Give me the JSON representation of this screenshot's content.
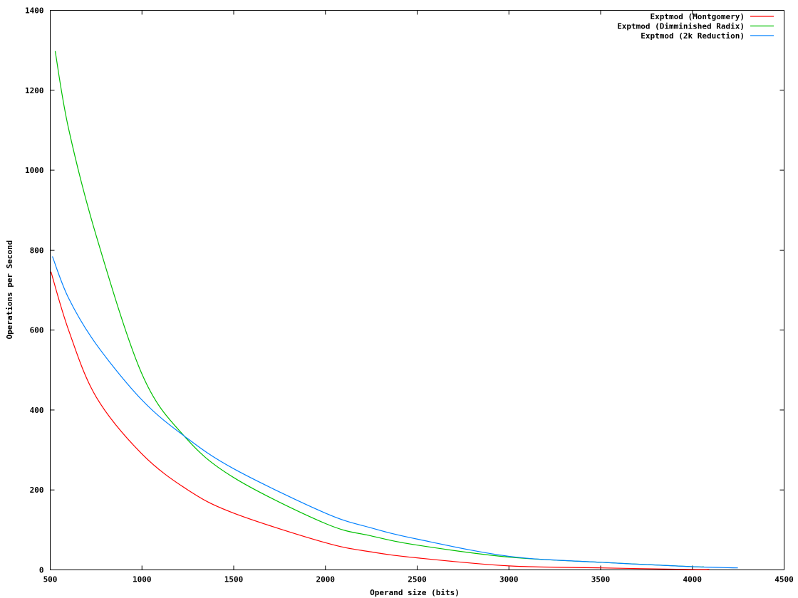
{
  "chart_data": {
    "type": "line",
    "title": "",
    "xlabel": "Operand size (bits)",
    "ylabel": "Operations per Second",
    "xlim": [
      500,
      4500
    ],
    "ylim": [
      0,
      1400
    ],
    "xticks": [
      500,
      1000,
      1500,
      2000,
      2500,
      3000,
      3500,
      4000,
      4500
    ],
    "yticks": [
      0,
      200,
      400,
      600,
      800,
      1000,
      1200,
      1400
    ],
    "grid": false,
    "legend_position": "top-right",
    "series": [
      {
        "name": "Exptmod (Montgomery)",
        "color": "#ff0000",
        "points": [
          [
            504,
            746
          ],
          [
            600,
            600
          ],
          [
            750,
            433
          ],
          [
            1000,
            290
          ],
          [
            1250,
            200
          ],
          [
            1500,
            142
          ],
          [
            2000,
            68
          ],
          [
            2250,
            45
          ],
          [
            2500,
            30
          ],
          [
            3000,
            10
          ],
          [
            3500,
            5
          ],
          [
            4000,
            1
          ],
          [
            4092,
            1
          ]
        ]
      },
      {
        "name": "Exptmod (Dimminished Radix)",
        "color": "#00c000",
        "points": [
          [
            527,
            1298
          ],
          [
            600,
            1104
          ],
          [
            750,
            837
          ],
          [
            1000,
            490
          ],
          [
            1230,
            335
          ],
          [
            1500,
            231
          ],
          [
            2000,
            116
          ],
          [
            2250,
            85
          ],
          [
            2500,
            62
          ],
          [
            3000,
            32
          ],
          [
            3500,
            19
          ],
          [
            4000,
            8
          ],
          [
            4060,
            8
          ]
        ]
      },
      {
        "name": "Exptmod (2k Reduction)",
        "color": "#0080ff",
        "points": [
          [
            512,
            784
          ],
          [
            600,
            680
          ],
          [
            750,
            565
          ],
          [
            1000,
            425
          ],
          [
            1230,
            335
          ],
          [
            1500,
            253
          ],
          [
            2000,
            142
          ],
          [
            2250,
            105
          ],
          [
            2500,
            77
          ],
          [
            3000,
            34
          ],
          [
            3500,
            19
          ],
          [
            4000,
            8
          ],
          [
            4248,
            5
          ]
        ]
      }
    ]
  }
}
